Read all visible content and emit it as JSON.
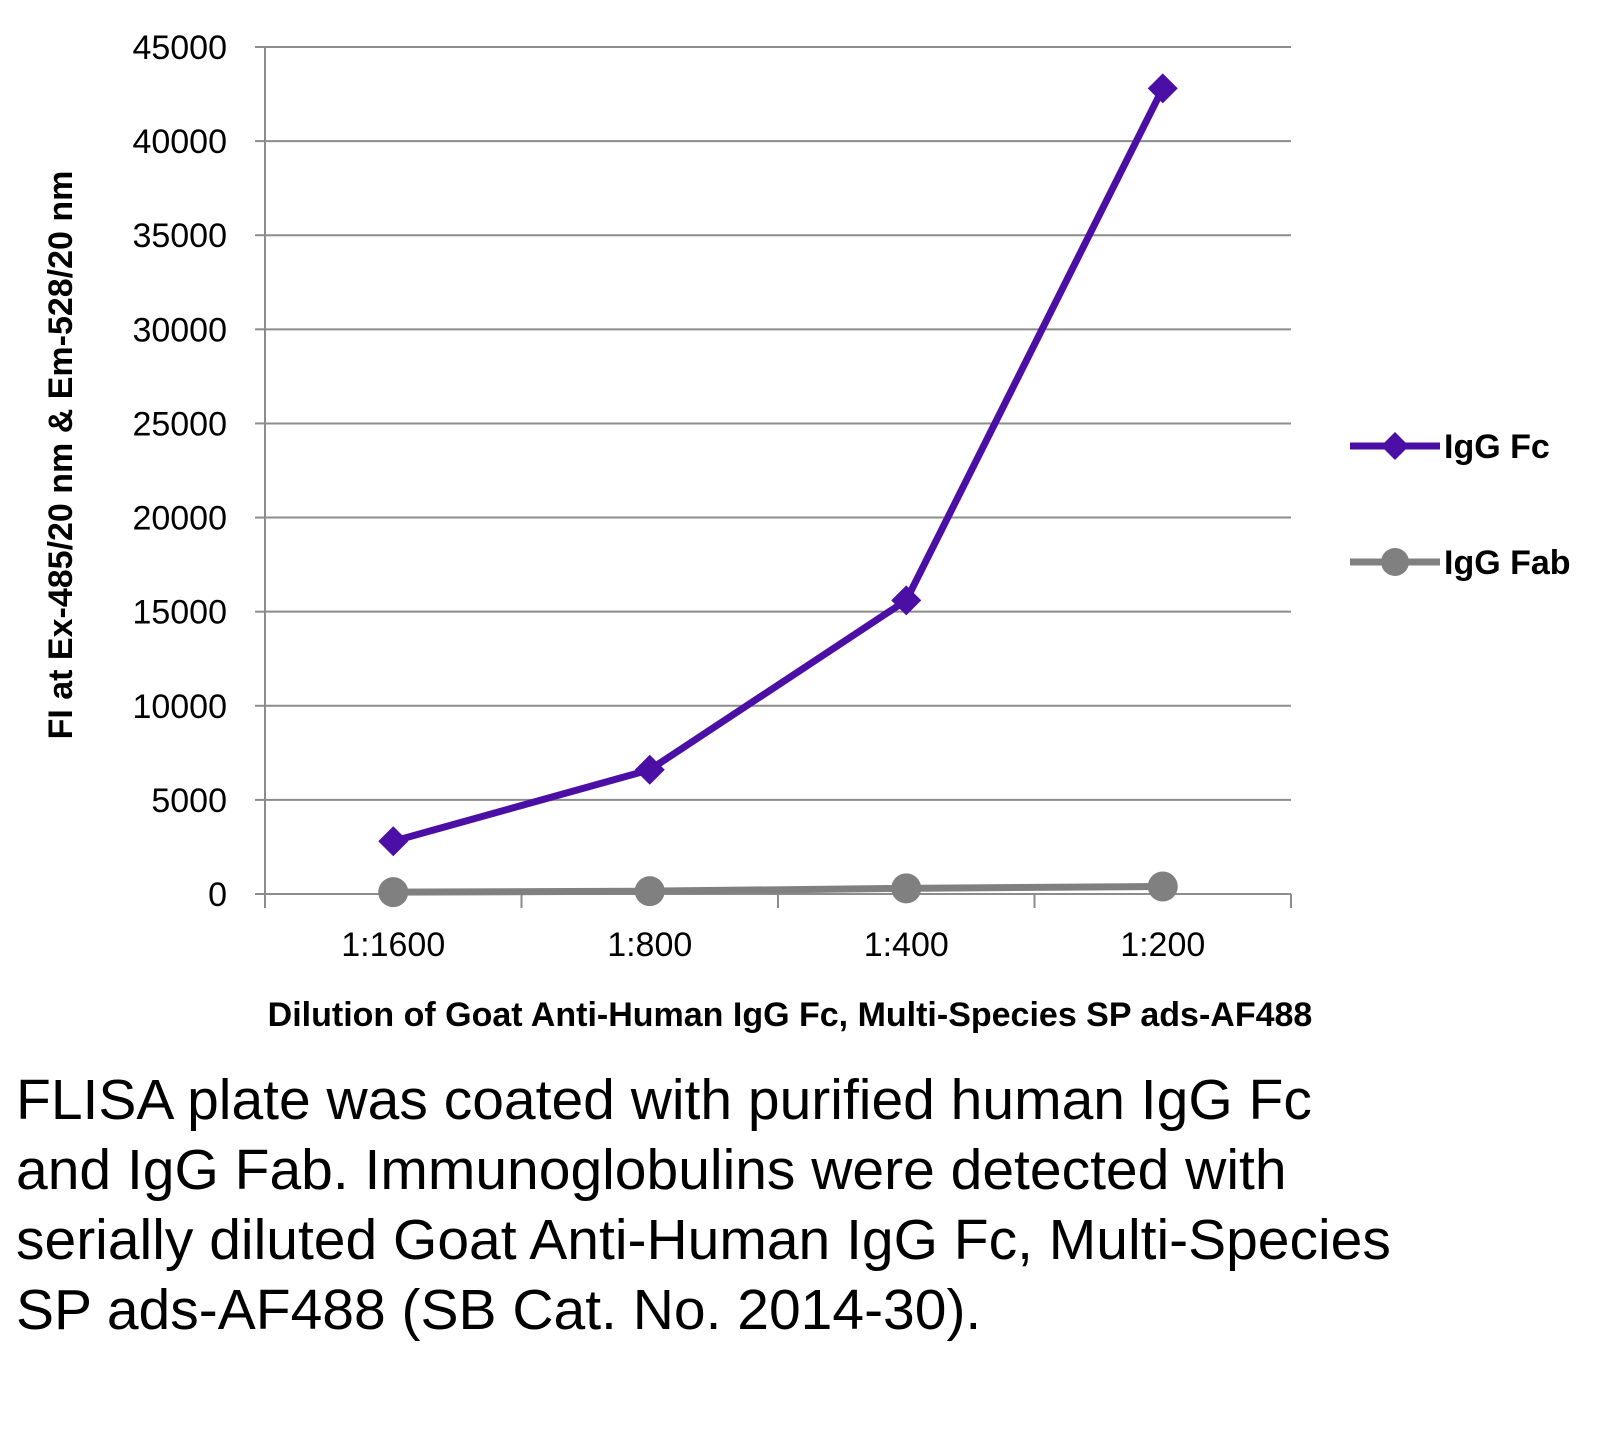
{
  "chart_data": {
    "type": "line",
    "title": "",
    "xlabel": "Dilution of Goat Anti-Human IgG Fc, Multi-Species SP ads-AF488",
    "ylabel": "FI at Ex-485/20 nm & Em-528/20 nm",
    "categories": [
      "1:1600",
      "1:800",
      "1:400",
      "1:200"
    ],
    "ylim": [
      0,
      45000
    ],
    "yticks": [
      0,
      5000,
      10000,
      15000,
      20000,
      25000,
      30000,
      35000,
      40000,
      45000
    ],
    "grid": true,
    "legend_position": "right",
    "series": [
      {
        "name": "IgG Fc",
        "values": [
          2800,
          6600,
          15600,
          42800
        ],
        "color": "#4b0fa5",
        "marker": "diamond"
      },
      {
        "name": "IgG Fab",
        "values": [
          100,
          150,
          300,
          400
        ],
        "color": "#808080",
        "marker": "circle"
      }
    ]
  },
  "caption": "FLISA plate was coated with purified human IgG Fc and IgG Fab.  Immunoglobulins were detected with serially diluted Goat Anti-Human IgG Fc, Multi-Species SP ads-AF488 (SB Cat. No. 2014-30)."
}
